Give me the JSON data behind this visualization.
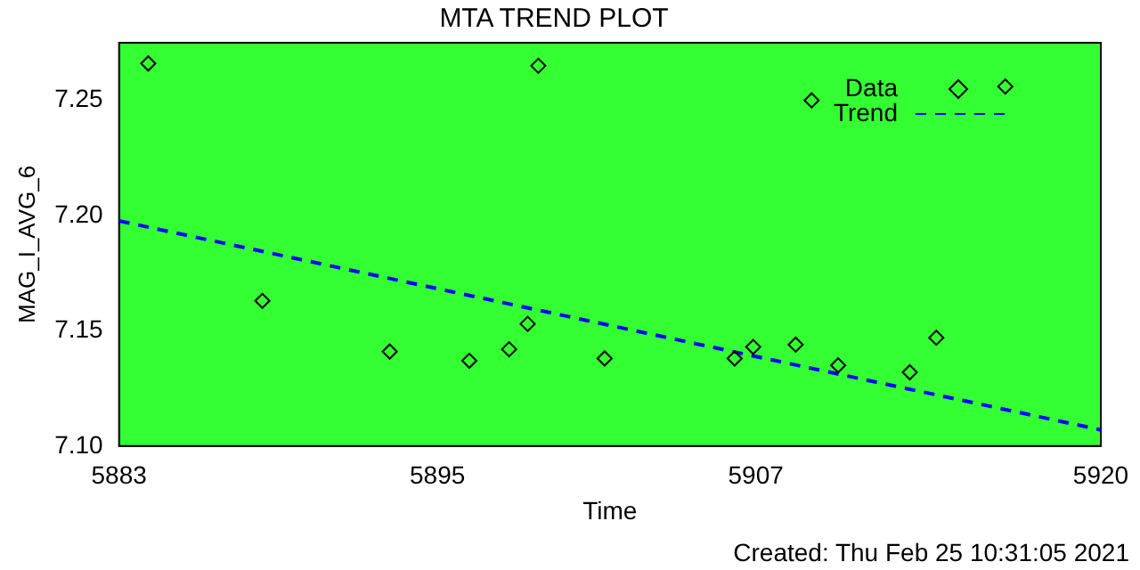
{
  "chart_data": {
    "type": "scatter",
    "title": "MTA TREND PLOT",
    "xlabel": "Time",
    "ylabel": "MAG_I_AVG_6",
    "annotations": [
      "Created: Thu Feb 25 10:31:05 2021"
    ],
    "xlim": [
      5883,
      5920
    ],
    "xticks": [
      5883,
      5895,
      5907,
      5920
    ],
    "ylim": [
      7.1,
      7.275
    ],
    "yticks": [
      {
        "value": 7.1,
        "label": "7.10"
      },
      {
        "value": 7.15,
        "label": "7.15"
      },
      {
        "value": 7.2,
        "label": "7.20"
      },
      {
        "value": 7.25,
        "label": "7.25"
      }
    ],
    "grid": false,
    "legend": "top right",
    "series": [
      {
        "name": "Data",
        "marker": "diamond",
        "color": "#000000",
        "x": [
          5884.1,
          5888.4,
          5893.2,
          5896.2,
          5897.7,
          5898.4,
          5898.8,
          5901.3,
          5906.2,
          5906.9,
          5908.5,
          5909.1,
          5910.1,
          5912.8,
          5913.8,
          5916.4
        ],
        "values": [
          7.266,
          7.163,
          7.141,
          7.137,
          7.142,
          7.153,
          7.265,
          7.138,
          7.138,
          7.143,
          7.144,
          7.25,
          7.135,
          7.132,
          7.147,
          7.256
        ]
      },
      {
        "name": "Trend",
        "type": "line",
        "marker": "none",
        "line_style": "dashed",
        "color": "#0000ff",
        "x": [
          5883,
          5920
        ],
        "values": [
          7.1977,
          7.107
        ]
      }
    ]
  }
}
